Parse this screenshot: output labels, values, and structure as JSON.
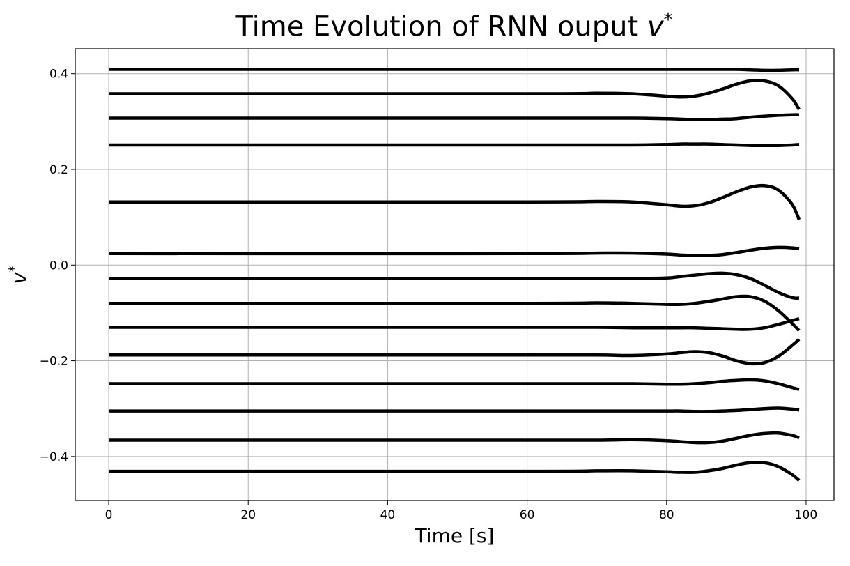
{
  "chart_data": {
    "type": "line",
    "title": "Time Evolution of RNN ouput v*",
    "title_text": "Time Evolution of RNN ouput ",
    "title_math": "v",
    "title_sup": "*",
    "xlabel": "Time [s]",
    "ylabel_base": "v",
    "ylabel_sup": "*",
    "xlim": [
      -4.8,
      104.0
    ],
    "ylim": [
      -0.492,
      0.452
    ],
    "xticks": [
      0,
      20,
      40,
      60,
      80,
      100
    ],
    "xtick_labels": [
      "0",
      "20",
      "40",
      "60",
      "80",
      "100"
    ],
    "yticks": [
      -0.4,
      -0.2,
      0.0,
      0.2,
      0.4
    ],
    "ytick_labels": [
      "−0.4",
      "−0.2",
      "0.0",
      "0.2",
      "0.4"
    ],
    "grid": true,
    "line_color": "#000000",
    "x": [
      0,
      60,
      70,
      75,
      80,
      82,
      84,
      86,
      88,
      90,
      92,
      94,
      96,
      98,
      99
    ],
    "series": [
      {
        "values": [
          0.409,
          0.409,
          0.409,
          0.409,
          0.409,
          0.409,
          0.409,
          0.409,
          0.409,
          0.409,
          0.408,
          0.407,
          0.407,
          0.408,
          0.408
        ]
      },
      {
        "values": [
          0.358,
          0.358,
          0.359,
          0.358,
          0.353,
          0.351,
          0.353,
          0.359,
          0.368,
          0.378,
          0.385,
          0.385,
          0.375,
          0.348,
          0.325
        ]
      },
      {
        "values": [
          0.307,
          0.307,
          0.307,
          0.307,
          0.306,
          0.305,
          0.304,
          0.304,
          0.305,
          0.306,
          0.309,
          0.311,
          0.313,
          0.314,
          0.314
        ]
      },
      {
        "values": [
          0.251,
          0.251,
          0.251,
          0.251,
          0.252,
          0.253,
          0.253,
          0.253,
          0.252,
          0.251,
          0.25,
          0.25,
          0.25,
          0.251,
          0.252
        ]
      },
      {
        "values": [
          0.132,
          0.132,
          0.133,
          0.132,
          0.126,
          0.123,
          0.124,
          0.13,
          0.141,
          0.153,
          0.163,
          0.166,
          0.157,
          0.127,
          0.095
        ]
      },
      {
        "values": [
          0.024,
          0.024,
          0.025,
          0.025,
          0.023,
          0.021,
          0.02,
          0.02,
          0.022,
          0.026,
          0.031,
          0.035,
          0.037,
          0.036,
          0.034
        ]
      },
      {
        "values": [
          -0.028,
          -0.028,
          -0.028,
          -0.028,
          -0.027,
          -0.024,
          -0.021,
          -0.018,
          -0.017,
          -0.02,
          -0.028,
          -0.042,
          -0.057,
          -0.068,
          -0.069
        ]
      },
      {
        "values": [
          -0.08,
          -0.08,
          -0.079,
          -0.08,
          -0.082,
          -0.082,
          -0.08,
          -0.076,
          -0.071,
          -0.066,
          -0.066,
          -0.075,
          -0.095,
          -0.122,
          -0.137
        ]
      },
      {
        "values": [
          -0.13,
          -0.13,
          -0.13,
          -0.131,
          -0.131,
          -0.131,
          -0.131,
          -0.132,
          -0.133,
          -0.134,
          -0.134,
          -0.131,
          -0.124,
          -0.116,
          -0.112
        ]
      },
      {
        "values": [
          -0.188,
          -0.188,
          -0.188,
          -0.189,
          -0.186,
          -0.183,
          -0.181,
          -0.183,
          -0.19,
          -0.2,
          -0.206,
          -0.204,
          -0.191,
          -0.168,
          -0.155
        ]
      },
      {
        "values": [
          -0.248,
          -0.248,
          -0.248,
          -0.248,
          -0.249,
          -0.249,
          -0.248,
          -0.246,
          -0.243,
          -0.241,
          -0.24,
          -0.242,
          -0.248,
          -0.256,
          -0.26
        ]
      },
      {
        "values": [
          -0.305,
          -0.305,
          -0.305,
          -0.305,
          -0.305,
          -0.305,
          -0.306,
          -0.306,
          -0.305,
          -0.304,
          -0.302,
          -0.3,
          -0.299,
          -0.301,
          -0.303
        ]
      },
      {
        "values": [
          -0.366,
          -0.366,
          -0.366,
          -0.365,
          -0.367,
          -0.369,
          -0.371,
          -0.371,
          -0.368,
          -0.362,
          -0.356,
          -0.352,
          -0.351,
          -0.356,
          -0.361
        ]
      },
      {
        "values": [
          -0.431,
          -0.431,
          -0.43,
          -0.43,
          -0.432,
          -0.433,
          -0.433,
          -0.43,
          -0.425,
          -0.418,
          -0.413,
          -0.413,
          -0.421,
          -0.438,
          -0.45
        ]
      }
    ]
  }
}
